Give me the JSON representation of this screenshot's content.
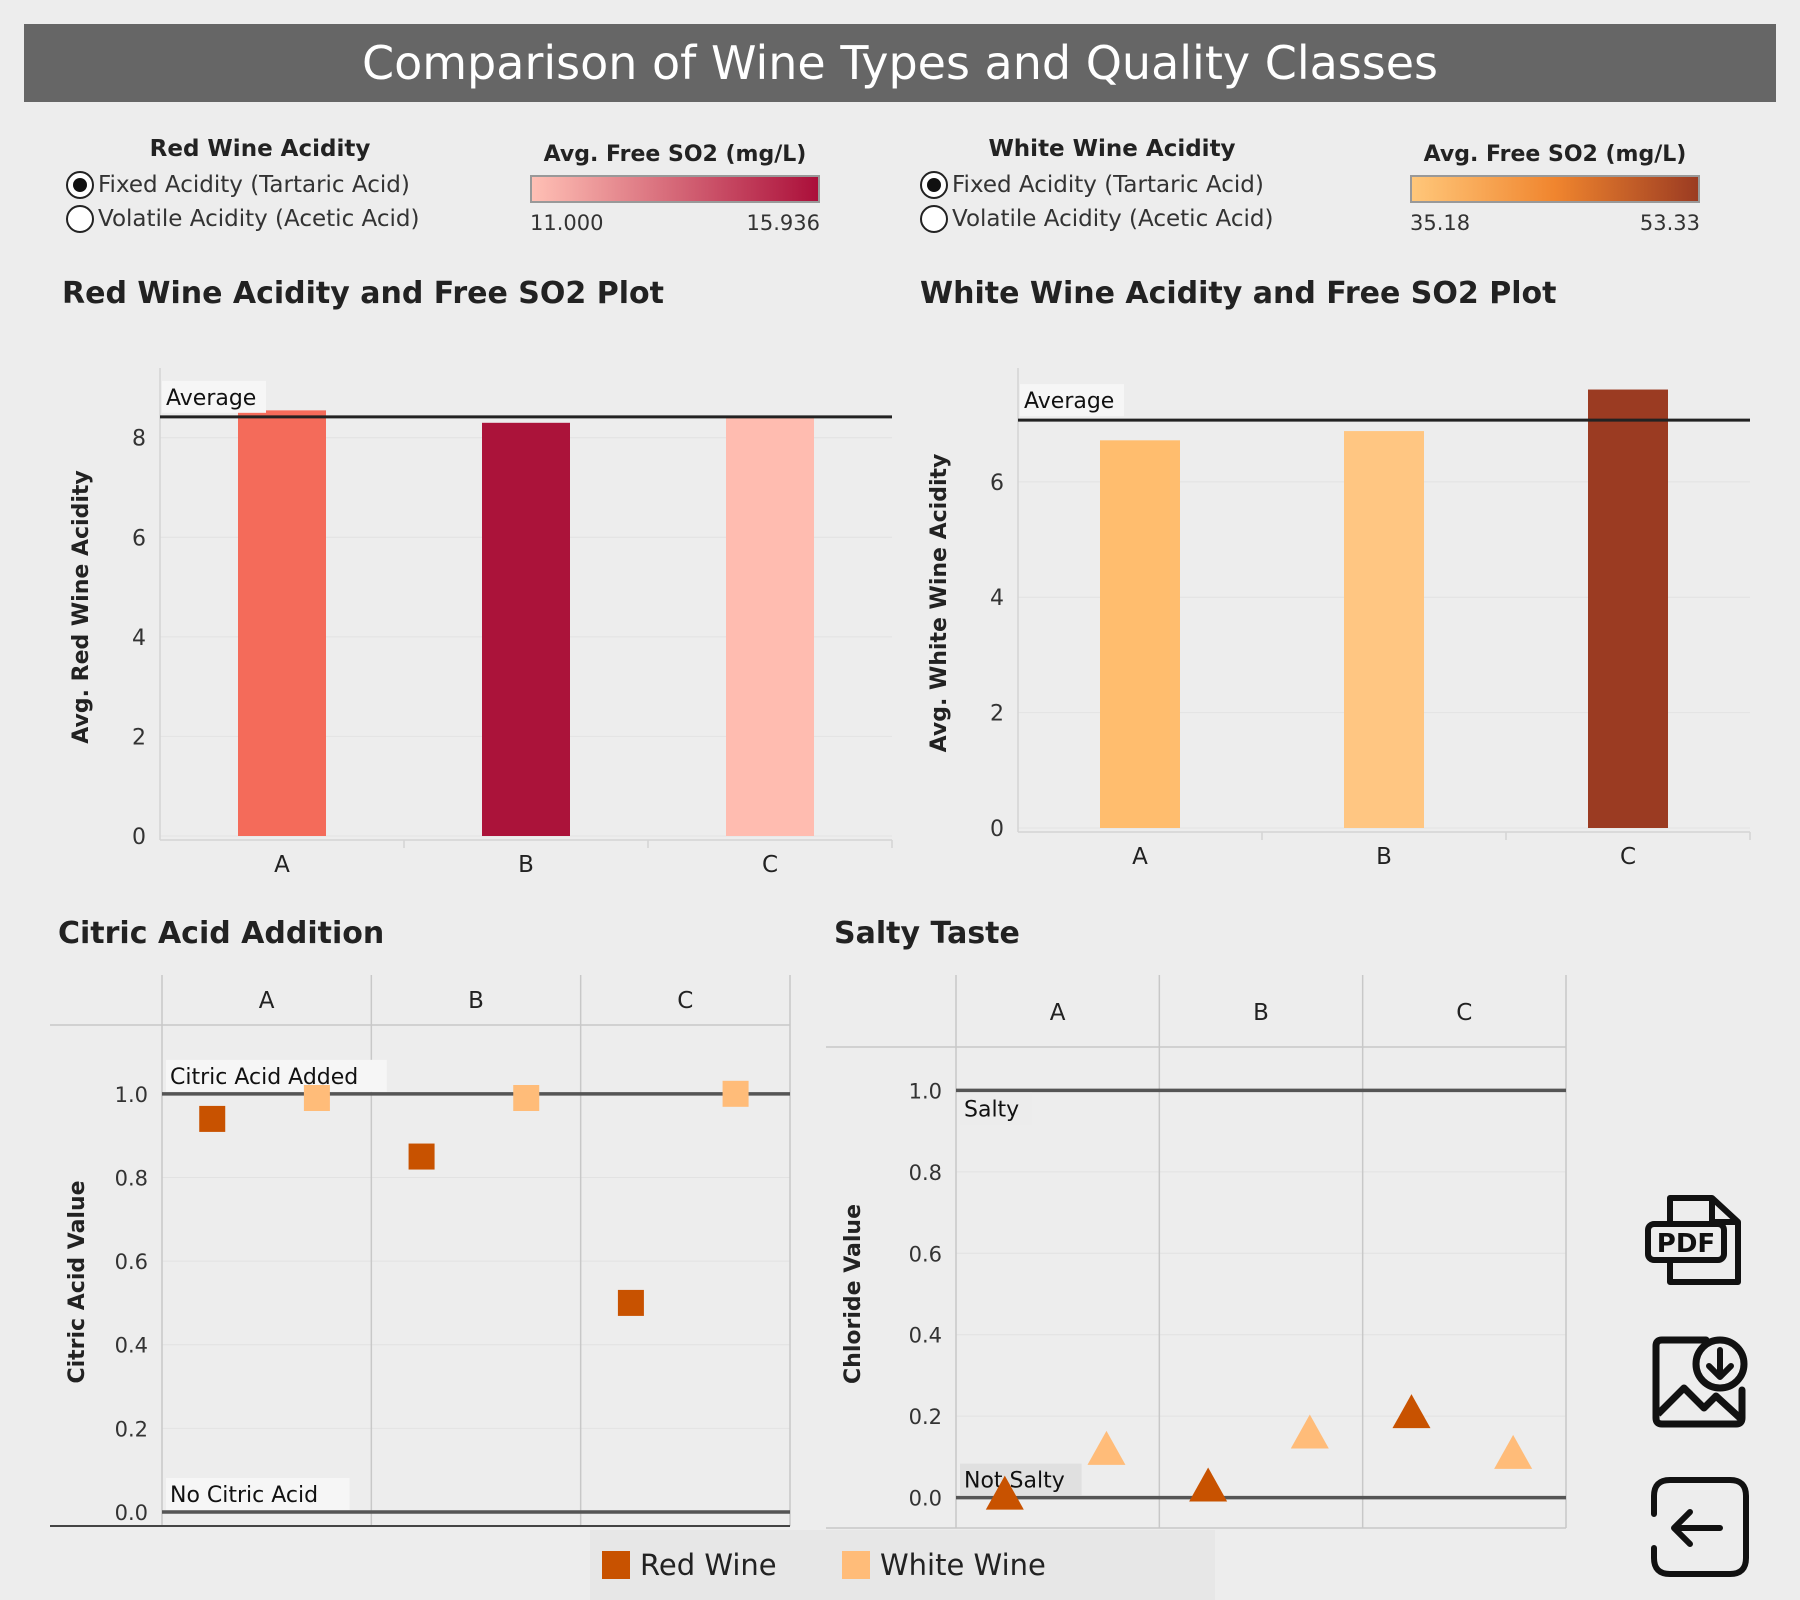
{
  "header": {
    "title": "Comparison of Wine Types and Quality Classes"
  },
  "red_controls": {
    "title": "Red Wine Acidity",
    "options": [
      {
        "label": "Fixed Acidity (Tartaric Acid)",
        "checked": true
      },
      {
        "label": "Volatile Acidity (Acetic Acid)",
        "checked": false
      }
    ],
    "legend": {
      "title": "Avg. Free SO2 (mg/L)",
      "min": "11.000",
      "max": "15.936",
      "color_low": "#ffc0b5",
      "color_high": "#ab0f3a"
    }
  },
  "white_controls": {
    "title": "White Wine Acidity",
    "options": [
      {
        "label": "Fixed Acidity (Tartaric Acid)",
        "checked": true
      },
      {
        "label": "Volatile Acidity (Acetic Acid)",
        "checked": false
      }
    ],
    "legend": {
      "title": "Avg. Free SO2 (mg/L)",
      "min": "35.18",
      "max": "53.33",
      "color_low": "#ffc77a",
      "color_high": "#9b3b22"
    }
  },
  "chart_data": [
    {
      "type": "bar",
      "title": "Red Wine Acidity and Free SO2 Plot",
      "categories": [
        "A",
        "B",
        "C"
      ],
      "values": [
        8.55,
        8.3,
        8.42
      ],
      "colors": [
        "#f46b5a",
        "#ab133a",
        "#ffbcb0"
      ],
      "ylabel": "Avg. Red Wine Acidity",
      "ylim": [
        0,
        9.2
      ],
      "yticks": [
        0,
        2,
        4,
        6,
        8
      ],
      "reference_line": {
        "label": "Average",
        "value": 8.42
      }
    },
    {
      "type": "bar",
      "title": "White Wine Acidity and Free SO2 Plot",
      "categories": [
        "A",
        "B",
        "C"
      ],
      "values": [
        6.72,
        6.88,
        7.6
      ],
      "colors": [
        "#ffbd6e",
        "#ffc682",
        "#9b3b22"
      ],
      "ylabel": "Avg. White Wine Acidity",
      "ylim": [
        0,
        7.8
      ],
      "yticks": [
        0,
        2,
        4,
        6
      ],
      "reference_line": {
        "label": "Average",
        "value": 7.07
      }
    },
    {
      "type": "scatter",
      "title": "Citric Acid Addition",
      "panels": [
        "A",
        "B",
        "C"
      ],
      "ylabel": "Citric Acid Value",
      "ylim": [
        0,
        1.1
      ],
      "yticks": [
        "0.0",
        "0.2",
        "0.4",
        "0.6",
        "0.8",
        "1.0"
      ],
      "marker": "square",
      "series": [
        {
          "name": "Red Wine",
          "color": "#c85200",
          "values": [
            0.94,
            0.85,
            0.5
          ]
        },
        {
          "name": "White Wine",
          "color": "#ffbc79",
          "values": [
            0.99,
            0.99,
            1.0
          ]
        }
      ],
      "reference_lines": [
        {
          "label": "Citric Acid Added",
          "value": 1.0
        },
        {
          "label": "No Citric Acid",
          "value": 0.0
        }
      ]
    },
    {
      "type": "scatter",
      "title": "Salty Taste",
      "panels": [
        "A",
        "B",
        "C"
      ],
      "ylabel": "Chloride Value",
      "ylim": [
        -0.05,
        1.05
      ],
      "yticks": [
        "0.0",
        "0.2",
        "0.4",
        "0.6",
        "0.8",
        "1.0"
      ],
      "marker": "triangle",
      "series": [
        {
          "name": "Red Wine",
          "color": "#c85200",
          "values": [
            0.0,
            0.02,
            0.2
          ]
        },
        {
          "name": "White Wine",
          "color": "#ffbc79",
          "values": [
            0.11,
            0.15,
            0.1
          ]
        }
      ],
      "reference_lines": [
        {
          "label": "Salty",
          "value": 1.0
        },
        {
          "label": "Not Salty",
          "value": 0.0
        }
      ]
    }
  ],
  "legend": [
    {
      "label": "Red Wine",
      "color": "#c85200"
    },
    {
      "label": "White Wine",
      "color": "#ffbc79"
    }
  ],
  "actions": {
    "pdf_icon_text": "PDF"
  }
}
